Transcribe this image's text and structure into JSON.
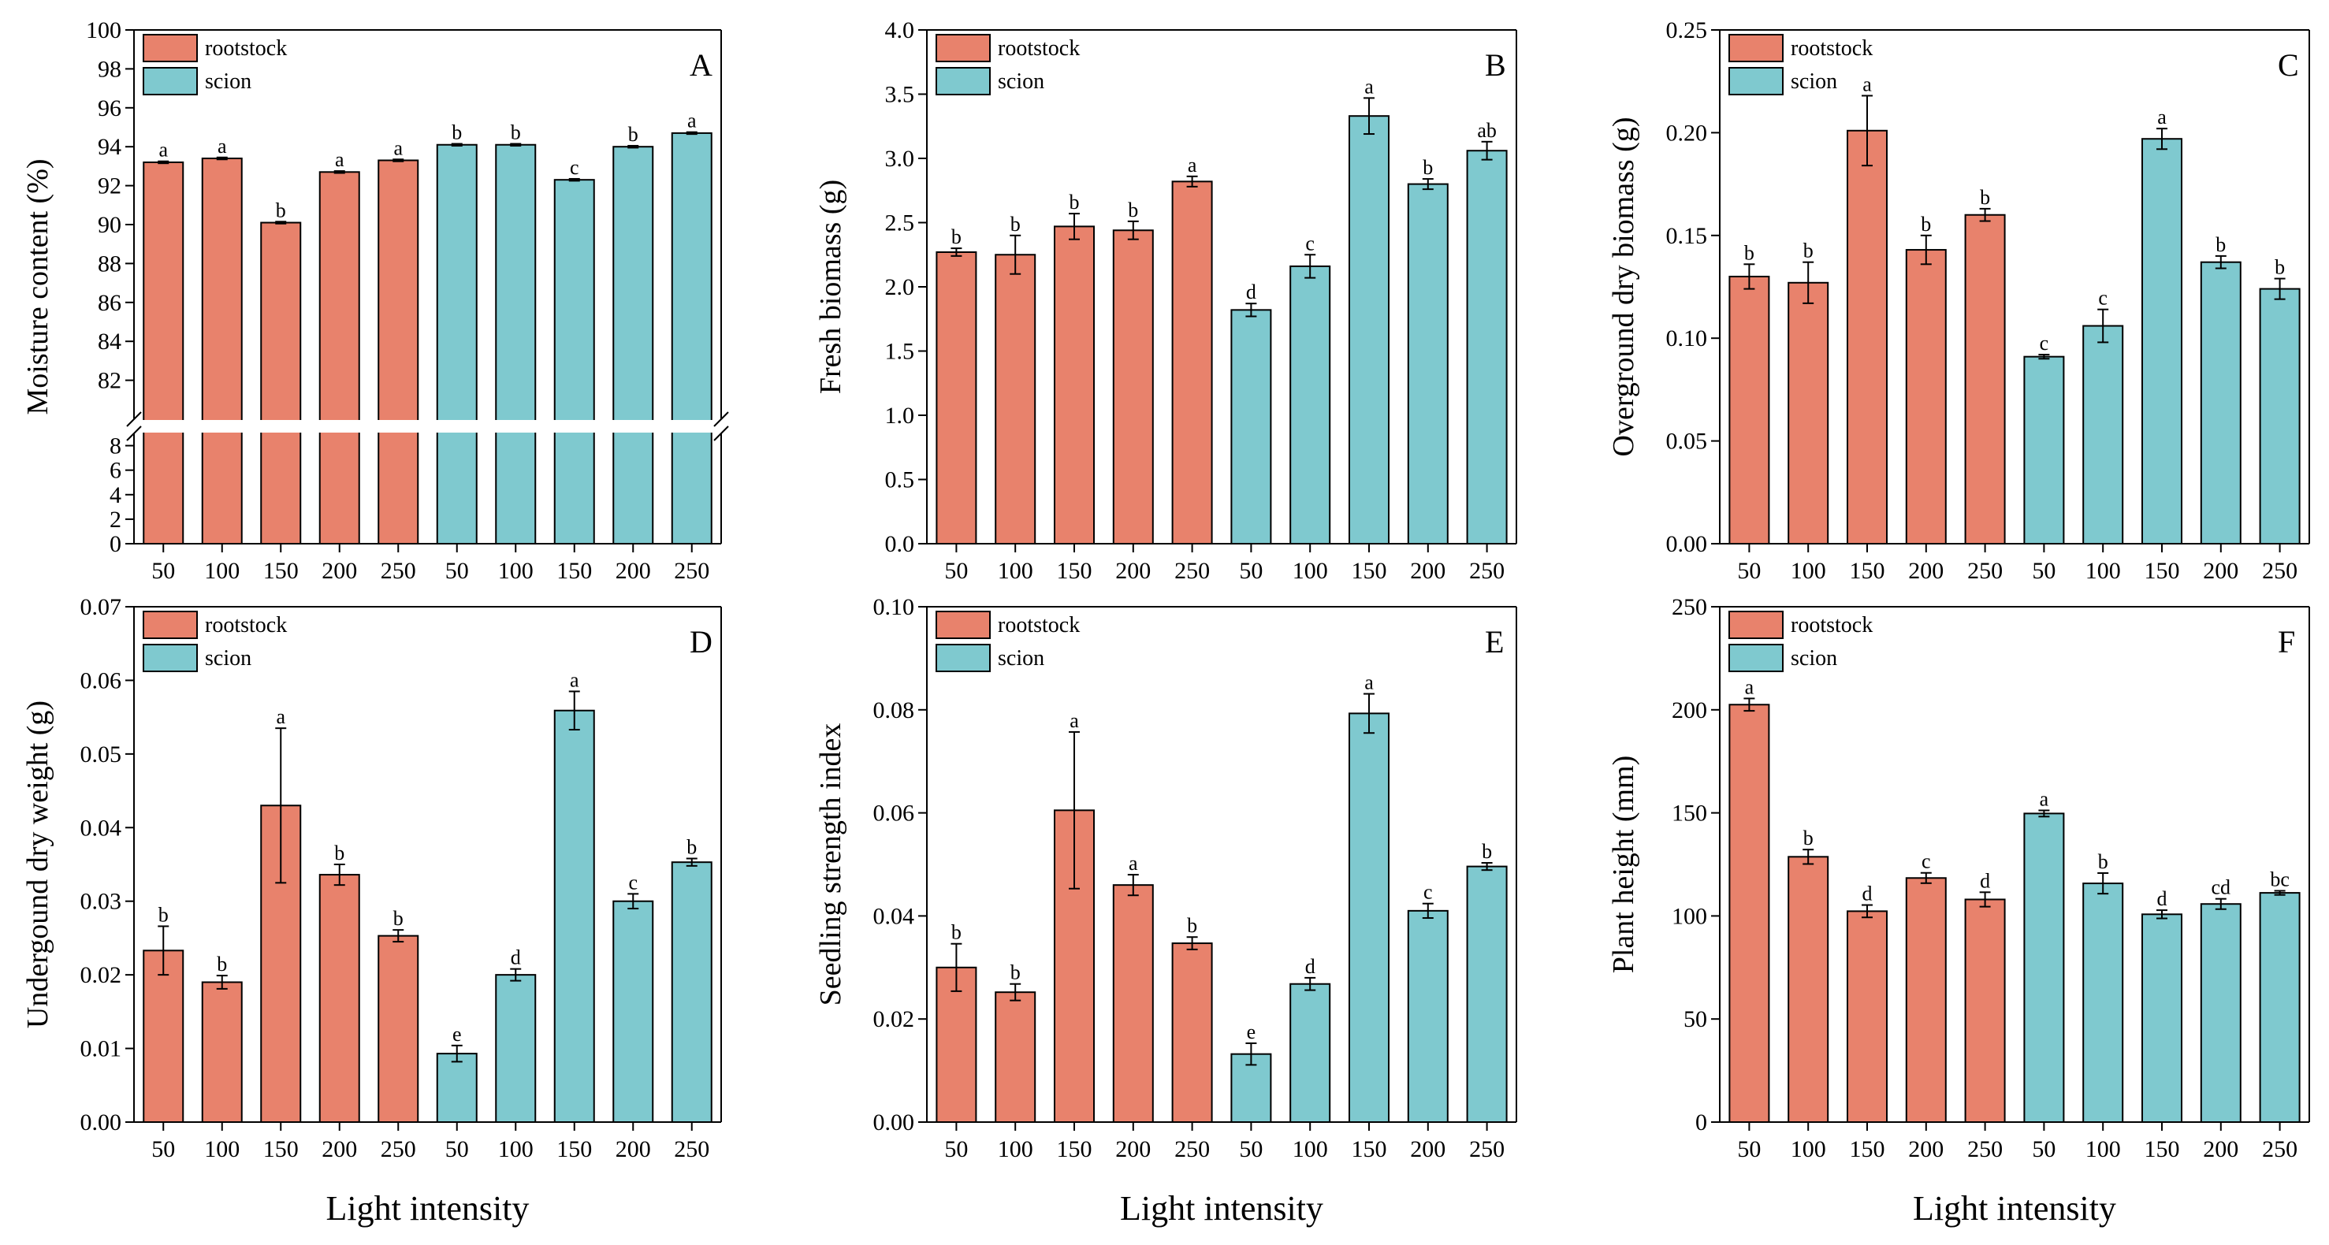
{
  "figure": {
    "xlabel": "Light intensity",
    "colors": {
      "rootstock": "#E8826C",
      "scion": "#7FC9CF",
      "axis": "#000000"
    }
  },
  "chart_data": [
    {
      "type": "bar",
      "panel": "A",
      "ylabel": "Moisture content (%)",
      "legend": [
        "rootstock",
        "scion"
      ],
      "categories": [
        "50",
        "100",
        "150",
        "200",
        "250",
        "50",
        "100",
        "150",
        "200",
        "250"
      ],
      "groups": [
        "rootstock",
        "rootstock",
        "rootstock",
        "rootstock",
        "rootstock",
        "scion",
        "scion",
        "scion",
        "scion",
        "scion"
      ],
      "values": [
        93.2,
        93.4,
        90.1,
        92.7,
        93.3,
        94.1,
        94.1,
        92.3,
        94.0,
        94.7
      ],
      "errors": [
        0.05,
        0.05,
        0.05,
        0.05,
        0.05,
        0.05,
        0.05,
        0.05,
        0.05,
        0.05
      ],
      "letters": [
        "a",
        "a",
        "b",
        "a",
        "a",
        "b",
        "b",
        "c",
        "b",
        "a"
      ],
      "axis_break": {
        "lower": [
          0,
          9
        ],
        "upper": [
          80,
          100
        ]
      },
      "yticks_lower": [
        0,
        2,
        4,
        6,
        8
      ],
      "yticks_upper": [
        82,
        84,
        86,
        88,
        90,
        92,
        94,
        96,
        98,
        100
      ],
      "yticklabels_lower": [
        "0",
        "2",
        "4",
        "6",
        "8"
      ],
      "yticklabels_upper": [
        "82",
        "84",
        "86",
        "88",
        "90",
        "92",
        "94",
        "96",
        "98",
        "100"
      ]
    },
    {
      "type": "bar",
      "panel": "B",
      "ylabel": "Fresh biomass (g)",
      "legend": [
        "rootstock",
        "scion"
      ],
      "categories": [
        "50",
        "100",
        "150",
        "200",
        "250",
        "50",
        "100",
        "150",
        "200",
        "250"
      ],
      "groups": [
        "rootstock",
        "rootstock",
        "rootstock",
        "rootstock",
        "rootstock",
        "scion",
        "scion",
        "scion",
        "scion",
        "scion"
      ],
      "values": [
        2.27,
        2.25,
        2.47,
        2.44,
        2.82,
        1.82,
        2.16,
        3.33,
        2.8,
        3.06
      ],
      "errors": [
        0.03,
        0.15,
        0.1,
        0.07,
        0.04,
        0.05,
        0.09,
        0.14,
        0.04,
        0.07
      ],
      "letters": [
        "b",
        "b",
        "b",
        "b",
        "a",
        "d",
        "c",
        "a",
        "b",
        "ab"
      ],
      "ylim": [
        0,
        4.0
      ],
      "yticks": [
        0,
        0.5,
        1.0,
        1.5,
        2.0,
        2.5,
        3.0,
        3.5,
        4.0
      ],
      "yticklabels": [
        "0.0",
        "0.5",
        "1.0",
        "1.5",
        "2.0",
        "2.5",
        "3.0",
        "3.5",
        "4.0"
      ]
    },
    {
      "type": "bar",
      "panel": "C",
      "ylabel": "Overground dry biomass (g)",
      "legend": [
        "rootstock",
        "scion"
      ],
      "categories": [
        "50",
        "100",
        "150",
        "200",
        "250",
        "50",
        "100",
        "150",
        "200",
        "250"
      ],
      "groups": [
        "rootstock",
        "rootstock",
        "rootstock",
        "rootstock",
        "rootstock",
        "scion",
        "scion",
        "scion",
        "scion",
        "scion"
      ],
      "values": [
        0.13,
        0.127,
        0.201,
        0.143,
        0.16,
        0.091,
        0.106,
        0.197,
        0.137,
        0.124
      ],
      "errors": [
        0.006,
        0.01,
        0.017,
        0.007,
        0.003,
        0.001,
        0.008,
        0.005,
        0.003,
        0.005
      ],
      "letters": [
        "b",
        "b",
        "a",
        "b",
        "b",
        "c",
        "c",
        "a",
        "b",
        "b"
      ],
      "ylim": [
        0,
        0.25
      ],
      "yticks": [
        0,
        0.05,
        0.1,
        0.15,
        0.2,
        0.25
      ],
      "yticklabels": [
        "0.00",
        "0.05",
        "0.10",
        "0.15",
        "0.20",
        "0.25"
      ]
    },
    {
      "type": "bar",
      "panel": "D",
      "ylabel": "Undergound dry weight (g)",
      "legend": [
        "rootstock",
        "scion"
      ],
      "categories": [
        "50",
        "100",
        "150",
        "200",
        "250",
        "50",
        "100",
        "150",
        "200",
        "250"
      ],
      "groups": [
        "rootstock",
        "rootstock",
        "rootstock",
        "rootstock",
        "rootstock",
        "scion",
        "scion",
        "scion",
        "scion",
        "scion"
      ],
      "values": [
        0.0233,
        0.019,
        0.043,
        0.0336,
        0.0253,
        0.0093,
        0.02,
        0.0559,
        0.03,
        0.0353
      ],
      "errors": [
        0.0033,
        0.0009,
        0.0105,
        0.0014,
        0.0008,
        0.0011,
        0.0008,
        0.0026,
        0.001,
        0.0005
      ],
      "letters": [
        "b",
        "b",
        "a",
        "b",
        "b",
        "e",
        "d",
        "a",
        "c",
        "b"
      ],
      "ylim": [
        0,
        0.07
      ],
      "yticks": [
        0,
        0.01,
        0.02,
        0.03,
        0.04,
        0.05,
        0.06,
        0.07
      ],
      "yticklabels": [
        "0.00",
        "0.01",
        "0.02",
        "0.03",
        "0.04",
        "0.05",
        "0.06",
        "0.07"
      ]
    },
    {
      "type": "bar",
      "panel": "E",
      "ylabel": "Seedling strength index",
      "legend": [
        "rootstock",
        "scion"
      ],
      "categories": [
        "50",
        "100",
        "150",
        "200",
        "250",
        "50",
        "100",
        "150",
        "200",
        "250"
      ],
      "groups": [
        "rootstock",
        "rootstock",
        "rootstock",
        "rootstock",
        "rootstock",
        "scion",
        "scion",
        "scion",
        "scion",
        "scion"
      ],
      "values": [
        0.03,
        0.0252,
        0.0605,
        0.046,
        0.0347,
        0.0132,
        0.0268,
        0.0793,
        0.041,
        0.0496
      ],
      "errors": [
        0.0046,
        0.0016,
        0.0152,
        0.002,
        0.0012,
        0.0021,
        0.0012,
        0.0038,
        0.0014,
        0.0007
      ],
      "letters": [
        "b",
        "b",
        "a",
        "a",
        "b",
        "e",
        "d",
        "a",
        "c",
        "b"
      ],
      "ylim": [
        0,
        0.1
      ],
      "yticks": [
        0,
        0.02,
        0.04,
        0.06,
        0.08,
        0.1
      ],
      "yticklabels": [
        "0.00",
        "0.02",
        "0.04",
        "0.06",
        "0.08",
        "0.10"
      ]
    },
    {
      "type": "bar",
      "panel": "F",
      "ylabel": "Plant height (mm)",
      "legend": [
        "rootstock",
        "scion"
      ],
      "categories": [
        "50",
        "100",
        "150",
        "200",
        "250",
        "50",
        "100",
        "150",
        "200",
        "250"
      ],
      "groups": [
        "rootstock",
        "rootstock",
        "rootstock",
        "rootstock",
        "rootstock",
        "scion",
        "scion",
        "scion",
        "scion",
        "scion"
      ],
      "values": [
        202.5,
        128.7,
        102.3,
        118.4,
        108.0,
        149.7,
        115.8,
        100.8,
        105.8,
        111.2
      ],
      "errors": [
        3.0,
        3.5,
        3.0,
        2.5,
        3.5,
        1.5,
        5.0,
        2.0,
        2.5,
        1.0
      ],
      "letters": [
        "a",
        "b",
        "d",
        "c",
        "d",
        "a",
        "b",
        "d",
        "cd",
        "bc"
      ],
      "ylim": [
        0,
        250
      ],
      "yticks": [
        0,
        50,
        100,
        150,
        200,
        250
      ],
      "yticklabels": [
        "0",
        "50",
        "100",
        "150",
        "200",
        "250"
      ]
    }
  ]
}
